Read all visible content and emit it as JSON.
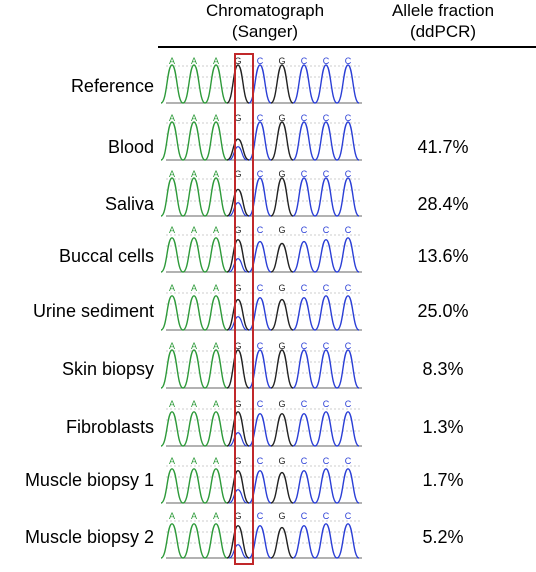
{
  "header": {
    "chromatograph_line1": "Chromatograph",
    "chromatograph_line2": "(Sanger)",
    "allele_line1": "Allele fraction",
    "allele_line2": "(ddPCR)"
  },
  "bases": [
    "A",
    "A",
    "A",
    "G",
    "C",
    "G",
    "C",
    "C",
    "C"
  ],
  "base_colors": {
    "A": "#2e9a3a",
    "G": "#222222",
    "C": "#2b3fd6",
    "T": "#d62b2b"
  },
  "highlight_color": "#c0282a",
  "rows": [
    {
      "label": "Reference",
      "value": ""
    },
    {
      "label": "Blood",
      "value": "41.7%"
    },
    {
      "label": "Saliva",
      "value": "28.4%"
    },
    {
      "label": "Buccal cells",
      "value": "13.6%"
    },
    {
      "label": "Urine sediment",
      "value": "25.0%"
    },
    {
      "label": "Skin biopsy",
      "value": "8.3%"
    },
    {
      "label": "Fibroblasts",
      "value": "1.3%"
    },
    {
      "label": "Muscle biopsy 1",
      "value": "1.7%"
    },
    {
      "label": "Muscle biopsy 2",
      "value": "5.2%"
    }
  ]
}
